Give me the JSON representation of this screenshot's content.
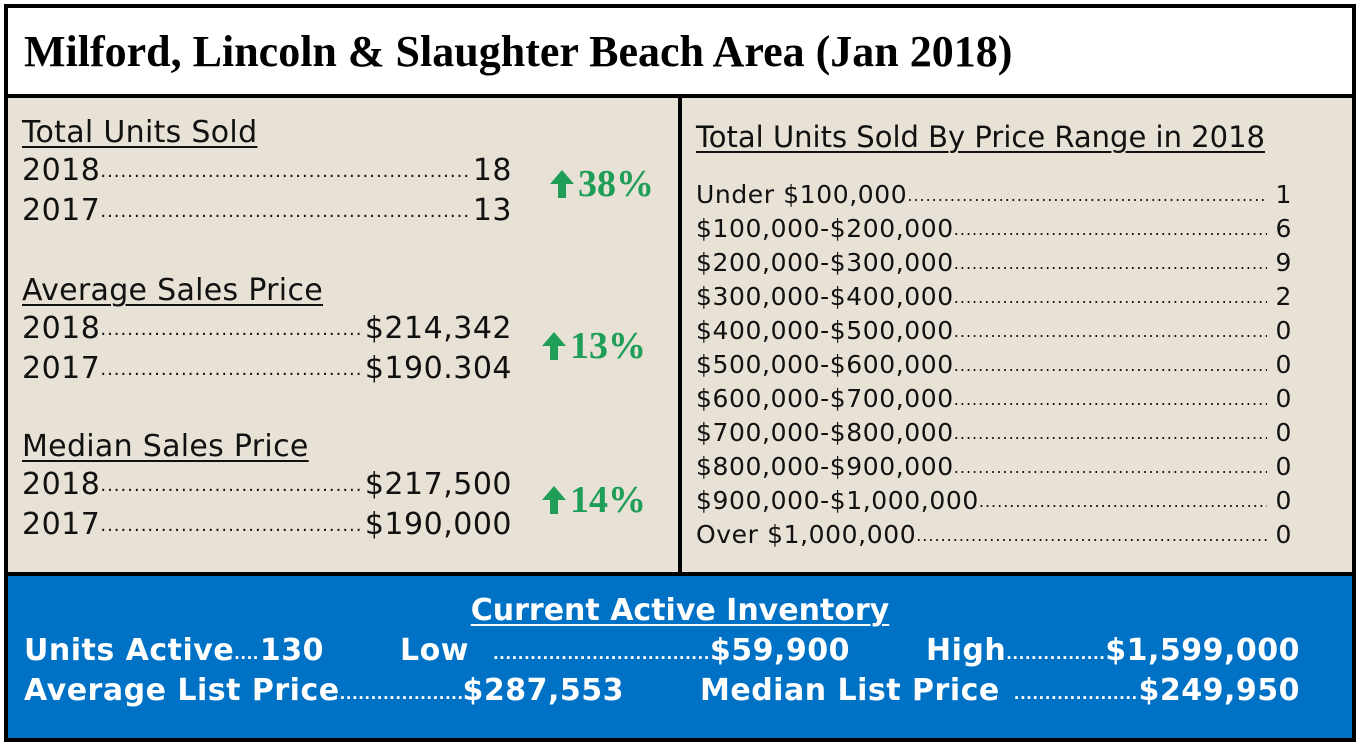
{
  "title": "Milford, Lincoln & Slaughter Beach Area (Jan 2018)",
  "total_units_sold": {
    "heading": "Total Units Sold",
    "rows": [
      {
        "year": "2018",
        "value": "18"
      },
      {
        "year": "2017",
        "value": "13"
      }
    ],
    "change": "38%",
    "change_direction": "up"
  },
  "average_sales_price": {
    "heading": "Average Sales Price",
    "rows": [
      {
        "year": "2018",
        "value": "$214,342"
      },
      {
        "year": "2017",
        "value": "$190.304"
      }
    ],
    "change": "13%",
    "change_direction": "up"
  },
  "median_sales_price": {
    "heading": "Median Sales Price",
    "rows": [
      {
        "year": "2018",
        "value": "$217,500"
      },
      {
        "year": "2017",
        "value": "$190,000"
      }
    ],
    "change": "14%",
    "change_direction": "up"
  },
  "price_range": {
    "heading": "Total Units Sold By Price Range in 2018",
    "rows": [
      {
        "range": "Under $100,000",
        "count": "1"
      },
      {
        "range": "$100,000-$200,000",
        "count": "6"
      },
      {
        "range": "$200,000-$300,000",
        "count": "9"
      },
      {
        "range": "$300,000-$400,000",
        "count": "2"
      },
      {
        "range": "$400,000-$500,000",
        "count": "0"
      },
      {
        "range": "$500,000-$600,000",
        "count": "0"
      },
      {
        "range": "$600,000-$700,000",
        "count": "0"
      },
      {
        "range": "$700,000-$800,000",
        "count": "0"
      },
      {
        "range": "$800,000-$900,000",
        "count": "0"
      },
      {
        "range": "$900,000-$1,000,000",
        "count": "0"
      },
      {
        "range": "Over $1,000,000",
        "count": "0"
      }
    ]
  },
  "inventory": {
    "heading": "Current Active Inventory",
    "units_active_label": "Units Active",
    "units_active_value": "130",
    "low_label": "Low",
    "low_value": "$59,900",
    "high_label": "High",
    "high_value": "$1,599,000",
    "avg_list_label": "Average List Price",
    "avg_list_value": "$287,553",
    "median_list_label": "Median List Price",
    "median_list_value": "$249,950"
  },
  "colors": {
    "panel_bg": "#e8e1d5",
    "inventory_bg": "#0072c6",
    "increase_green": "#1e9e57"
  }
}
